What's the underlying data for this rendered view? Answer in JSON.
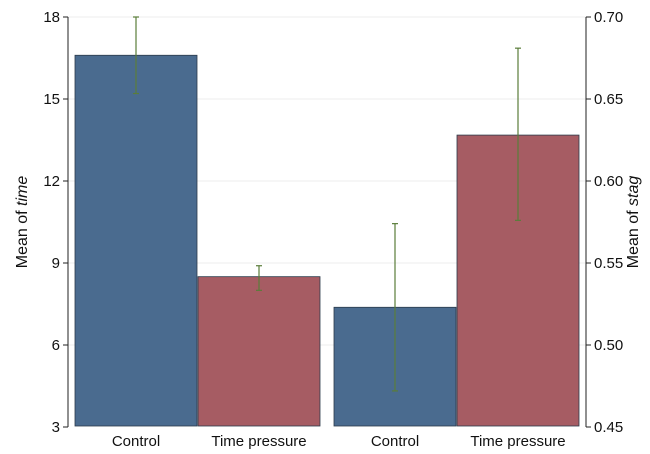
{
  "chart_data": {
    "type": "bar",
    "grid": true,
    "panels": [
      {
        "axis": "left",
        "categories": [
          "Control",
          "Time pressure"
        ],
        "values": [
          16.6,
          8.5
        ],
        "error_low": [
          15.2,
          8.0
        ],
        "error_high": [
          18.0,
          8.9
        ],
        "colors": [
          "#4a6b8f",
          "#a65c63"
        ]
      },
      {
        "axis": "right",
        "categories": [
          "Control",
          "Time pressure"
        ],
        "values": [
          0.523,
          0.628
        ],
        "error_low": [
          0.472,
          0.576
        ],
        "error_high": [
          0.574,
          0.681
        ],
        "colors": [
          "#4a6b8f",
          "#a65c63"
        ]
      }
    ],
    "left_axis": {
      "label_prefix": "Mean of ",
      "label_var": "time",
      "ylim": [
        3,
        18
      ],
      "ticks": [
        "3",
        "6",
        "9",
        "12",
        "15",
        "18"
      ]
    },
    "right_axis": {
      "label_prefix": "Mean of ",
      "label_var": "stag",
      "ylim": [
        0.45,
        0.7
      ],
      "ticks": [
        "0.45",
        "0.50",
        "0.55",
        "0.60",
        "0.65",
        "0.70"
      ]
    },
    "error_bar_color": "#5a7d3a"
  }
}
